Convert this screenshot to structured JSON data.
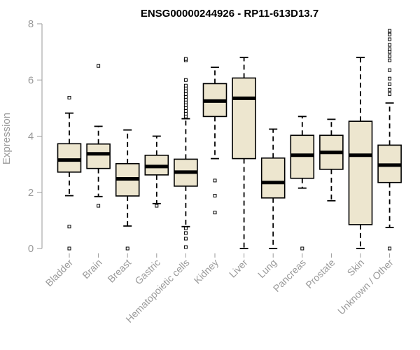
{
  "chart_data": {
    "type": "boxplot",
    "title": "ENSG00000244926 - RP11-613D13.7",
    "xlabel": "",
    "ylabel": "Expression",
    "ylim": [
      0,
      8
    ],
    "yticks": [
      0,
      2,
      4,
      6,
      8
    ],
    "grid": false,
    "colors": {
      "box_fill": "#ede6cf",
      "outline": "#000000",
      "axis": "#9a9a9a"
    },
    "categories": [
      "Bladder",
      "Brain",
      "Breast",
      "Gastric",
      "Hematopoietic cells",
      "Kidney",
      "Liver",
      "Lung",
      "Pancreas",
      "Prostate",
      "Skin",
      "Unknown / Other"
    ],
    "boxes": [
      {
        "name": "Bladder",
        "whisker_low": 1.88,
        "q1": 2.72,
        "median": 3.15,
        "q3": 3.73,
        "whisker_high": 4.82,
        "outliers": [
          0.0,
          0.78,
          5.37
        ]
      },
      {
        "name": "Brain",
        "whisker_low": 1.85,
        "q1": 2.85,
        "median": 3.37,
        "q3": 3.72,
        "whisker_high": 4.35,
        "outliers": [
          1.52,
          6.5
        ]
      },
      {
        "name": "Breast",
        "whisker_low": 0.8,
        "q1": 1.87,
        "median": 2.48,
        "q3": 3.02,
        "whisker_high": 4.22,
        "outliers": [
          0.0
        ]
      },
      {
        "name": "Gastric",
        "whisker_low": 1.6,
        "q1": 2.62,
        "median": 2.92,
        "q3": 3.32,
        "whisker_high": 4.0,
        "outliers": [
          1.52
        ]
      },
      {
        "name": "Hematopoietic cells",
        "whisker_low": 0.78,
        "q1": 2.22,
        "median": 2.72,
        "q3": 3.18,
        "whisker_high": 4.62,
        "outliers": [
          0.05,
          0.35,
          0.55,
          0.72,
          4.7,
          4.8,
          4.9,
          5.0,
          5.1,
          5.2,
          5.3,
          5.4,
          5.5,
          5.6,
          5.7,
          5.8,
          6.0,
          6.7,
          6.75
        ]
      },
      {
        "name": "Kidney",
        "whisker_low": 3.2,
        "q1": 4.7,
        "median": 5.25,
        "q3": 5.87,
        "whisker_high": 6.45,
        "outliers": [
          1.28,
          1.88,
          2.42
        ]
      },
      {
        "name": "Liver",
        "whisker_low": 0.0,
        "q1": 3.2,
        "median": 5.35,
        "q3": 6.07,
        "whisker_high": 6.8,
        "outliers": []
      },
      {
        "name": "Lung",
        "whisker_low": 0.0,
        "q1": 1.8,
        "median": 2.35,
        "q3": 3.22,
        "whisker_high": 4.25,
        "outliers": []
      },
      {
        "name": "Pancreas",
        "whisker_low": 2.15,
        "q1": 2.5,
        "median": 3.32,
        "q3": 4.03,
        "whisker_high": 4.7,
        "outliers": [
          0.0
        ]
      },
      {
        "name": "Prostate",
        "whisker_low": 1.7,
        "q1": 2.82,
        "median": 3.42,
        "q3": 4.03,
        "whisker_high": 4.6,
        "outliers": []
      },
      {
        "name": "Skin",
        "whisker_low": 0.0,
        "q1": 0.85,
        "median": 3.32,
        "q3": 4.53,
        "whisker_high": 6.8,
        "outliers": []
      },
      {
        "name": "Unknown / Other",
        "whisker_low": 0.75,
        "q1": 2.35,
        "median": 2.97,
        "q3": 3.68,
        "whisker_high": 5.18,
        "outliers": [
          0.0,
          5.5,
          5.65,
          5.85,
          6.05,
          6.35,
          6.7,
          6.85,
          7.0,
          7.1,
          7.25,
          7.45,
          7.62,
          7.75
        ]
      }
    ]
  }
}
